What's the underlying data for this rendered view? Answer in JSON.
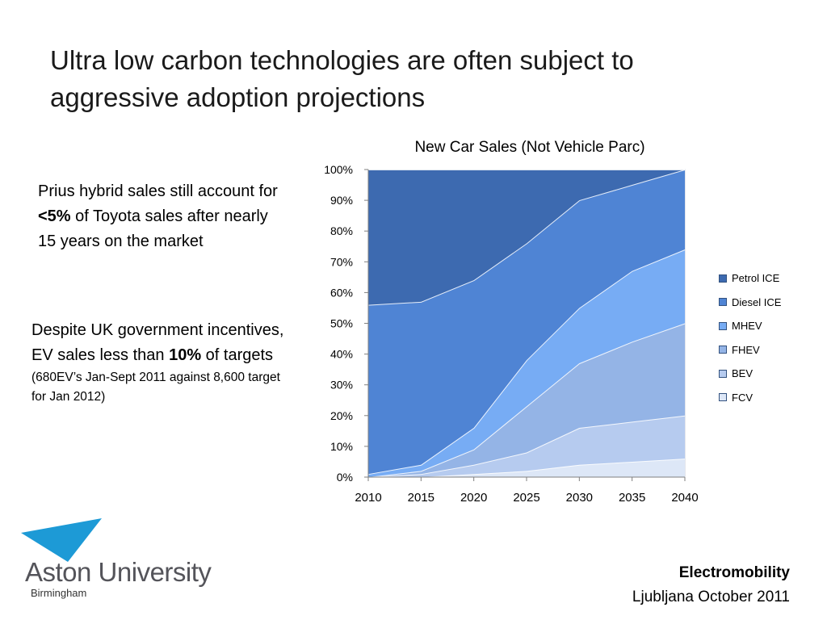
{
  "slide": {
    "title": "Ultra low carbon technologies are often subject to aggressive adoption projections",
    "note1": {
      "before": "Prius hybrid sales still account for ",
      "bold": "<5%",
      "after": " of Toyota sales after nearly 15 years on the market"
    },
    "note2": {
      "line": "Despite UK government incentives, EV sales less than ",
      "bold": "10%",
      "after": " of targets",
      "small": "(680EV’s Jan-Sept 2011 against 8,600 target for Jan 2012)"
    }
  },
  "colors": {
    "Petrol ICE": "#3d6ab0",
    "Diesel ICE": "#4f84d4",
    "MHEV": "#77acf4",
    "FHEV": "#94b4e6",
    "BEV": "#b6cbef",
    "FCV": "#dde7f7"
  },
  "chart_data": {
    "type": "area",
    "stacked": true,
    "title": "New Car Sales (Not Vehicle Parc)",
    "categories": [
      "2010",
      "2015",
      "2020",
      "2025",
      "2030",
      "2035",
      "2040"
    ],
    "ylim": [
      0,
      100
    ],
    "yticks": [
      "0%",
      "10%",
      "20%",
      "30%",
      "40%",
      "50%",
      "60%",
      "70%",
      "80%",
      "90%",
      "100%"
    ],
    "legend_position": "right",
    "grid": false,
    "series": [
      {
        "name": "FCV",
        "values": [
          0,
          0,
          1,
          2,
          4,
          5,
          6
        ]
      },
      {
        "name": "BEV",
        "values": [
          0,
          1,
          3,
          6,
          12,
          13,
          14
        ]
      },
      {
        "name": "FHEV",
        "values": [
          0,
          1,
          5,
          15,
          21,
          26,
          30
        ]
      },
      {
        "name": "MHEV",
        "values": [
          1,
          2,
          7,
          15,
          18,
          23,
          24
        ]
      },
      {
        "name": "Diesel ICE",
        "values": [
          55,
          53,
          48,
          38,
          35,
          28,
          26
        ]
      },
      {
        "name": "Petrol ICE",
        "values": [
          44,
          43,
          36,
          24,
          10,
          5,
          0
        ]
      }
    ],
    "legend_order": [
      "Petrol ICE",
      "Diesel ICE",
      "MHEV",
      "FHEV",
      "BEV",
      "FCV"
    ]
  },
  "footer": {
    "logo_name": "Aston University",
    "logo_sub": "Birmingham",
    "event": "Electromobility",
    "place": "Ljubljana October 2011"
  }
}
